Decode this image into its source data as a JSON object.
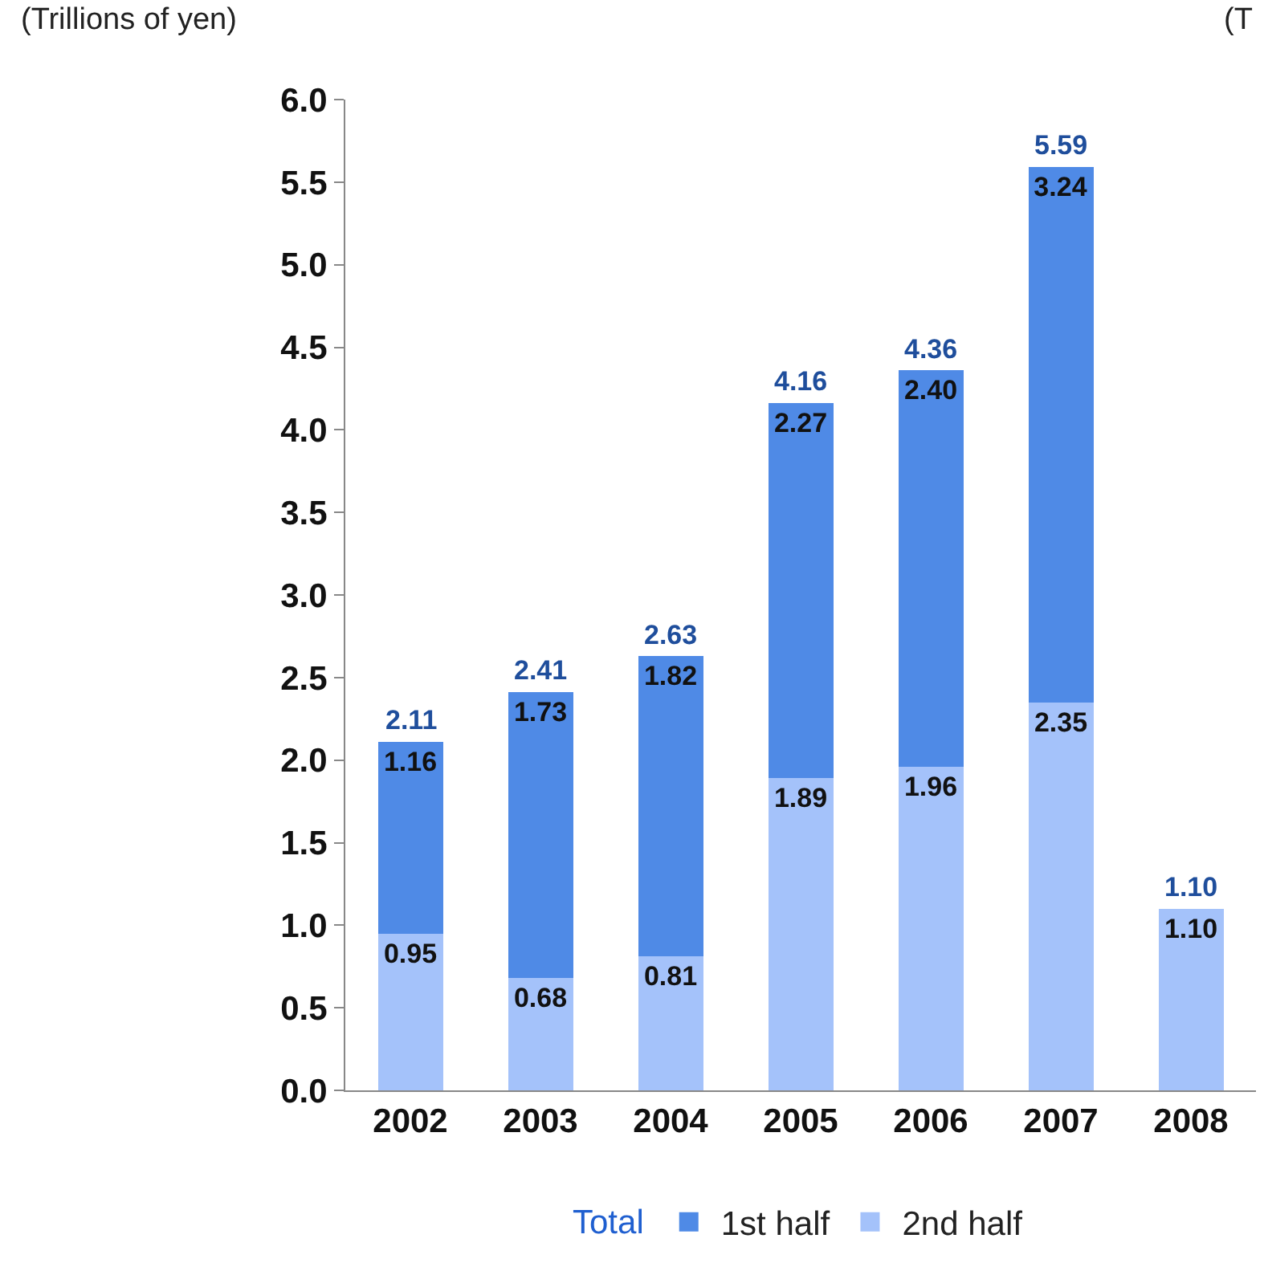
{
  "chart_data": {
    "type": "bar",
    "stacked": true,
    "ylabel": "(Trillions of yen)",
    "legend_title": "Total",
    "annotations": [
      "(T"
    ],
    "categories": [
      "2002",
      "2003",
      "2004",
      "2005",
      "2006",
      "2007",
      "2008"
    ],
    "series": [
      {
        "name": "2nd half",
        "color": "#a4c2fa",
        "values": [
          0.95,
          0.68,
          0.81,
          1.89,
          1.96,
          2.35,
          1.1
        ],
        "value_labels": [
          "0.95",
          "0.68",
          "0.81",
          "1.89",
          "1.96",
          "2.35",
          "1.10"
        ]
      },
      {
        "name": "1st half",
        "color": "#4f8ae6",
        "values": [
          1.16,
          1.73,
          1.82,
          2.27,
          2.4,
          3.24,
          null
        ],
        "value_labels": [
          "1.16",
          "1.73",
          "1.82",
          "2.27",
          "2.40",
          "3.24",
          null
        ]
      }
    ],
    "totals": [
      "2.11",
      "2.41",
      "2.63",
      "4.16",
      "4.36",
      "5.59",
      "1.10"
    ],
    "legend": "bottom",
    "grid": false,
    "ylim": [
      0,
      6
    ],
    "yticks": [
      {
        "value": 0,
        "label": "0.0"
      },
      {
        "value": 0.5,
        "label": "0.5"
      },
      {
        "value": 1,
        "label": "1.0"
      },
      {
        "value": 1.5,
        "label": "1.5"
      },
      {
        "value": 2,
        "label": "2.0"
      },
      {
        "value": 2.5,
        "label": "2.5"
      },
      {
        "value": 3,
        "label": "3.0"
      },
      {
        "value": 3.5,
        "label": "3.5"
      },
      {
        "value": 4,
        "label": "4.0"
      },
      {
        "value": 4.5,
        "label": "4.5"
      },
      {
        "value": 5,
        "label": "5.0"
      },
      {
        "value": 5.5,
        "label": "5.5"
      },
      {
        "value": 6,
        "label": "6.0"
      }
    ]
  }
}
